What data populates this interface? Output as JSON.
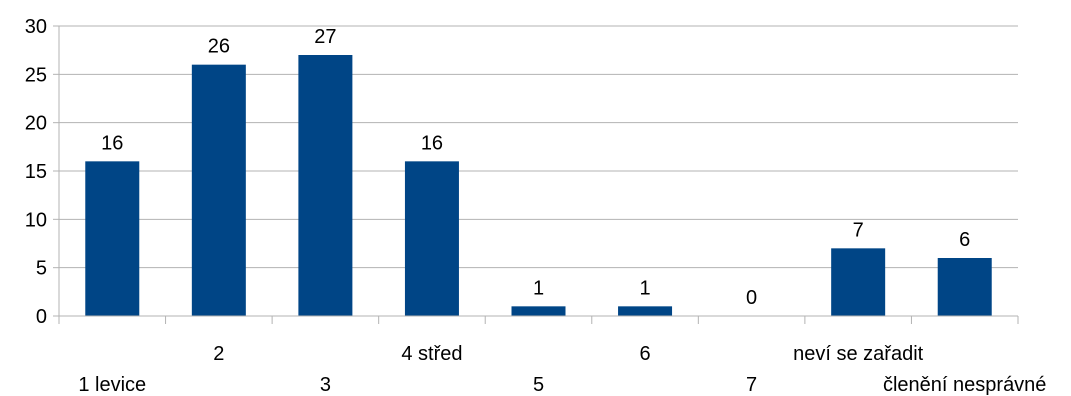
{
  "chart_data": {
    "type": "bar",
    "categories": [
      "1 levice",
      "2",
      "3",
      "4 střed",
      "5",
      "6",
      "7",
      "neví se zařadit",
      "členění nesprávné"
    ],
    "values": [
      16,
      26,
      27,
      16,
      1,
      1,
      0,
      7,
      6
    ],
    "data_labels": [
      "16",
      "26",
      "27",
      "16",
      "1",
      "1",
      "0",
      "7",
      "6"
    ],
    "y_ticks": [
      "0",
      "5",
      "10",
      "15",
      "20",
      "25",
      "30"
    ],
    "ylim": [
      0,
      30
    ],
    "grid": true,
    "title": "",
    "xlabel": "",
    "ylabel": "",
    "colors": {
      "bar": "#004586",
      "grid": "#b3b3b3",
      "axis": "#b3b3b3"
    }
  }
}
